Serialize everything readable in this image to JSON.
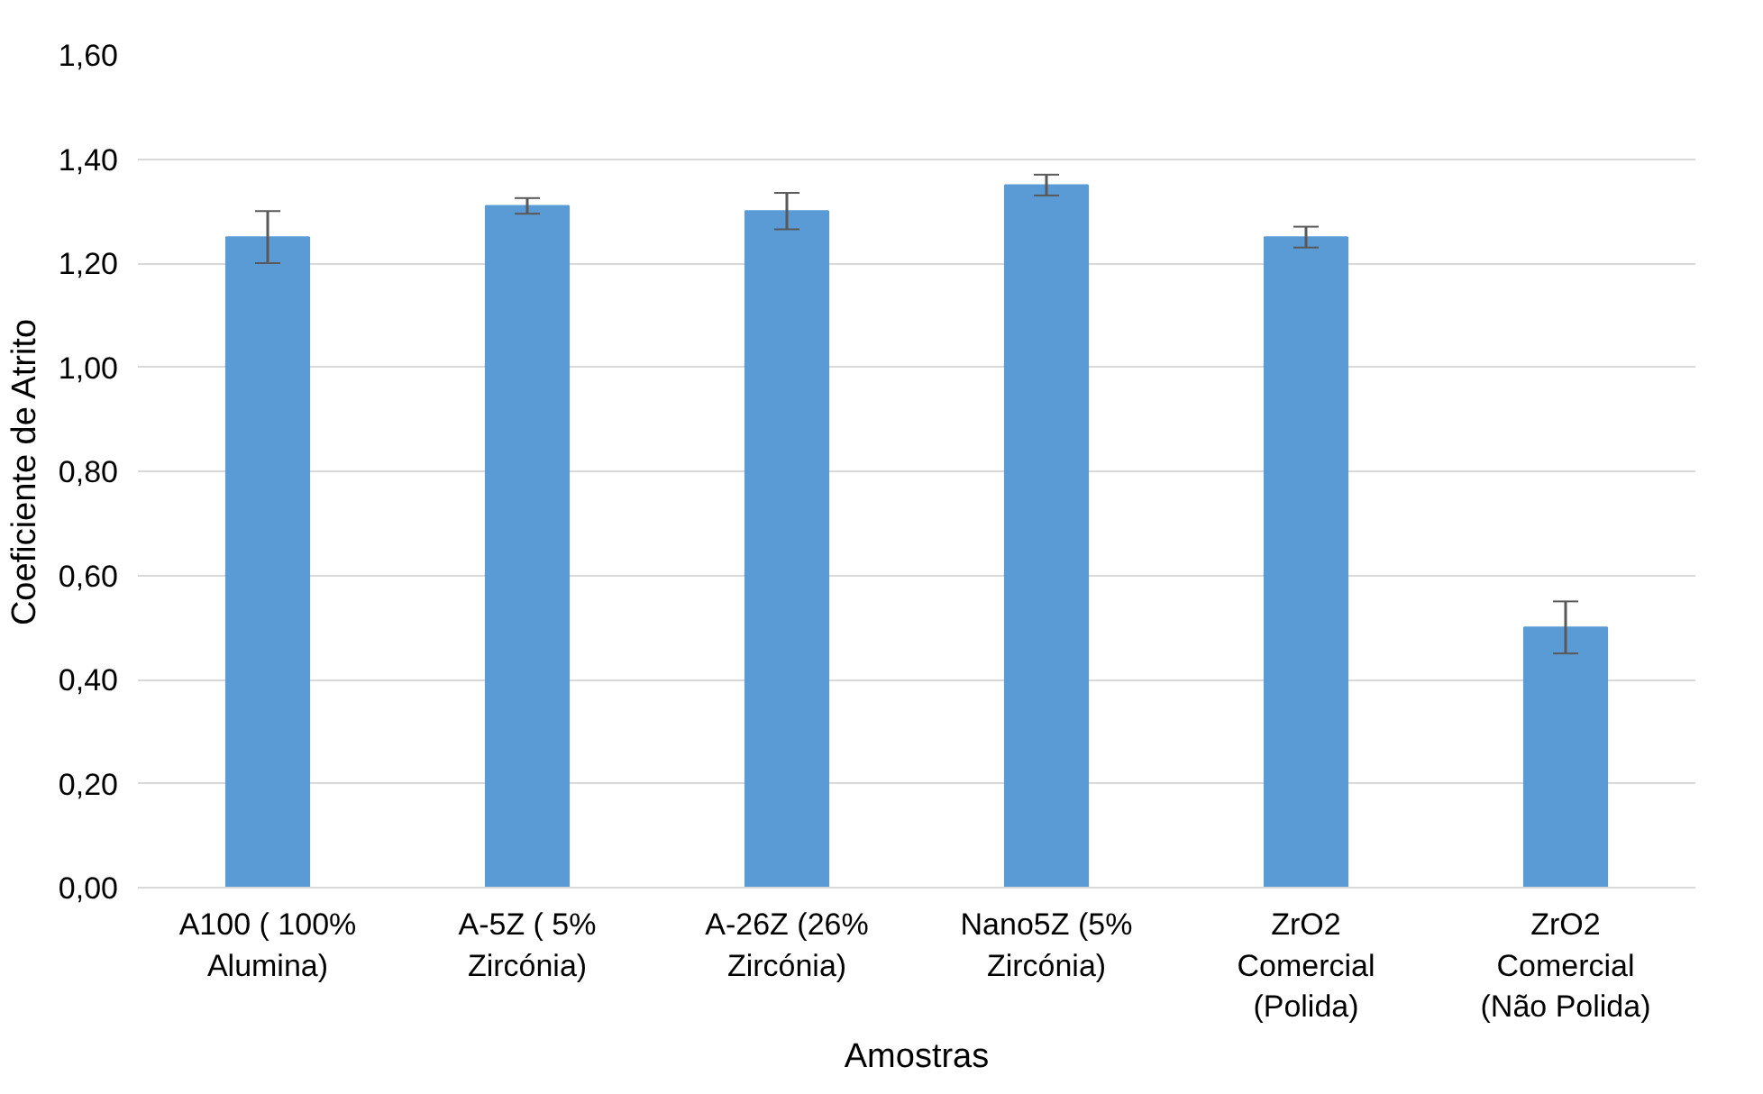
{
  "chart_data": {
    "type": "bar",
    "xlabel": "Amostras",
    "ylabel": "Coeficiente de Atrito",
    "categories": [
      "A100 ( 100%\nAlumina)",
      "A-5Z ( 5%\nZircónia)",
      "A-26Z (26%\nZircónia)",
      "Nano5Z (5%\nZircónia)",
      "ZrO2\nComercial\n(Polida)",
      "ZrO2\nComercial\n(Não Polida)"
    ],
    "values": [
      1.25,
      1.31,
      1.3,
      1.35,
      1.25,
      0.5
    ],
    "errors": [
      0.05,
      0.015,
      0.035,
      0.02,
      0.02,
      0.05
    ],
    "color": "#5b9bd5",
    "ylim": [
      0,
      1.6
    ],
    "yticks": [
      {
        "value": 0,
        "label": "0,00"
      },
      {
        "value": 0.2,
        "label": "0,20"
      },
      {
        "value": 0.4,
        "label": "0,40"
      },
      {
        "value": 0.6,
        "label": "0,60"
      },
      {
        "value": 0.8,
        "label": "0,80"
      },
      {
        "value": 1.0,
        "label": "1,00"
      },
      {
        "value": 1.2,
        "label": "1,20"
      },
      {
        "value": 1.4,
        "label": "1,40"
      },
      {
        "value": 1.6,
        "label": "1,60"
      }
    ],
    "grid": "y"
  }
}
